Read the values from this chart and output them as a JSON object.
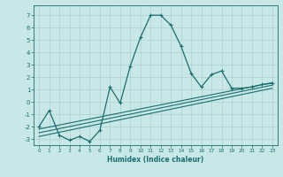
{
  "xlabel": "Humidex (Indice chaleur)",
  "background_color": "#c8e8e8",
  "grid_color": "#b0d0d0",
  "line_color": "#1a6e6e",
  "xlim": [
    -0.5,
    23.5
  ],
  "ylim": [
    -3.5,
    7.8
  ],
  "xticks": [
    0,
    1,
    2,
    3,
    4,
    5,
    6,
    7,
    8,
    9,
    10,
    11,
    12,
    13,
    14,
    15,
    16,
    17,
    18,
    19,
    20,
    21,
    22,
    23
  ],
  "yticks": [
    -3,
    -2,
    -1,
    0,
    1,
    2,
    3,
    4,
    5,
    6,
    7
  ],
  "line1_x": [
    0,
    1,
    2,
    3,
    4,
    5,
    6,
    7,
    8,
    9,
    10,
    11,
    12,
    13,
    14,
    15,
    16,
    17,
    18,
    19,
    20,
    21,
    22,
    23
  ],
  "line1_y": [
    -2.0,
    -0.7,
    -2.7,
    -3.1,
    -2.8,
    -3.2,
    -2.3,
    1.2,
    -0.1,
    2.9,
    5.2,
    7.0,
    7.0,
    6.2,
    4.5,
    2.3,
    1.2,
    2.2,
    2.5,
    1.1,
    1.1,
    1.2,
    1.4,
    1.5
  ],
  "line2_x": [
    0,
    23
  ],
  "line2_y": [
    -2.2,
    1.55
  ],
  "line3_x": [
    0,
    23
  ],
  "line3_y": [
    -2.5,
    1.35
  ],
  "line4_x": [
    0,
    23
  ],
  "line4_y": [
    -2.8,
    1.1
  ]
}
